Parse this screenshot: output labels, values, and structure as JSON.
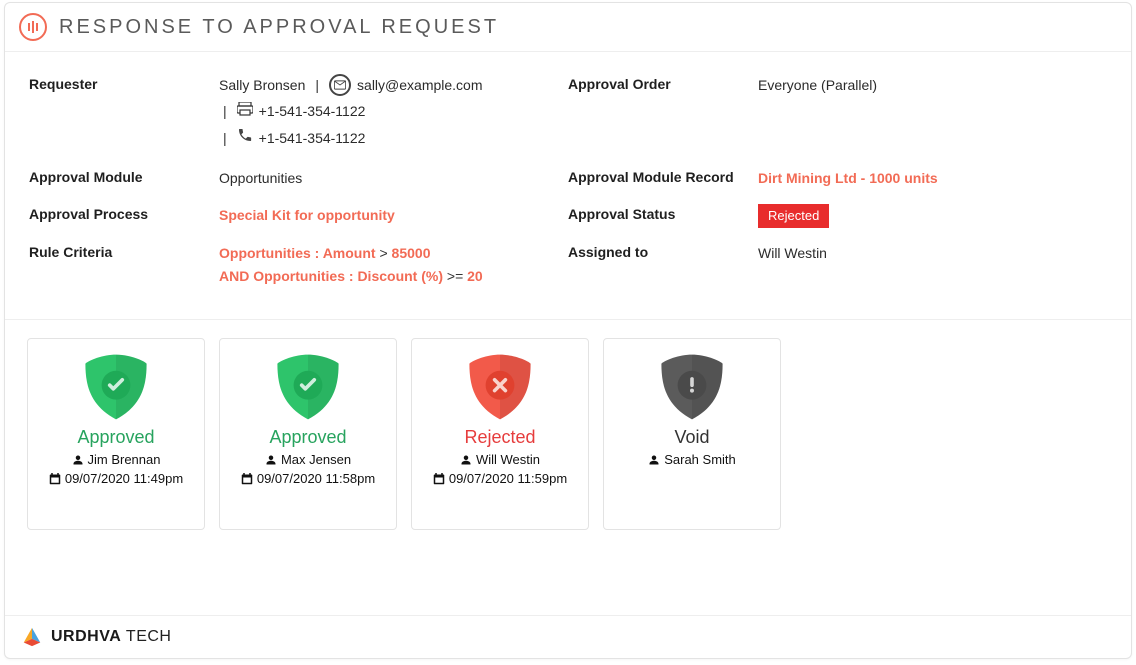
{
  "header": {
    "title": "RESPONSE TO APPROVAL REQUEST"
  },
  "colors": {
    "accent": "#f26b55",
    "approved": "#27a35e",
    "rejected": "#e63c3c",
    "void": "#555",
    "status_badge_bg": "#e82c2c"
  },
  "fields": {
    "requester_label": "Requester",
    "requester": {
      "name": "Sally Bronsen",
      "email": "sally@example.com",
      "fax": "+1-541-354-1122",
      "phone": "+1-541-354-1122"
    },
    "approval_order_label": "Approval Order",
    "approval_order": "Everyone (Parallel)",
    "approval_module_label": "Approval Module",
    "approval_module": "Opportunities",
    "approval_module_record_label": "Approval Module Record",
    "approval_module_record": "Dirt Mining Ltd - 1000 units",
    "approval_process_label": "Approval Process",
    "approval_process": "Special Kit for opportunity",
    "approval_status_label": "Approval Status",
    "approval_status": "Rejected",
    "rule_criteria_label": "Rule Criteria",
    "rule_criteria_lines": {
      "line1_a": "Opportunities : Amount ",
      "line1_op": ">",
      "line1_b": " 85000",
      "line2_conj": "AND ",
      "line2_a": "Opportunities : Discount (%) ",
      "line2_op": ">=",
      "line2_b": " 20"
    },
    "assigned_to_label": "Assigned to",
    "assigned_to": "Will Westin"
  },
  "status_cards": [
    {
      "status": "Approved",
      "status_class": "approved",
      "user": "Jim Brennan",
      "timestamp": "09/07/2020 11:49pm",
      "shield_color": "#2ec46b",
      "inner_color": "#1faa57",
      "icon": "check"
    },
    {
      "status": "Approved",
      "status_class": "approved",
      "user": "Max Jensen",
      "timestamp": "09/07/2020 11:58pm",
      "shield_color": "#2ec46b",
      "inner_color": "#1faa57",
      "icon": "check"
    },
    {
      "status": "Rejected",
      "status_class": "rejected",
      "user": "Will Westin",
      "timestamp": "09/07/2020 11:59pm",
      "shield_color": "#f25a4a",
      "inner_color": "#e0412f",
      "icon": "cross"
    },
    {
      "status": "Void",
      "status_class": "void",
      "user": "Sarah Smith",
      "timestamp": "",
      "shield_color": "#5b5b5b",
      "inner_color": "#4a4a4a",
      "icon": "exclaim"
    }
  ],
  "footer": {
    "brand_bold": "URDHVA",
    "brand_thin": " TECH"
  }
}
